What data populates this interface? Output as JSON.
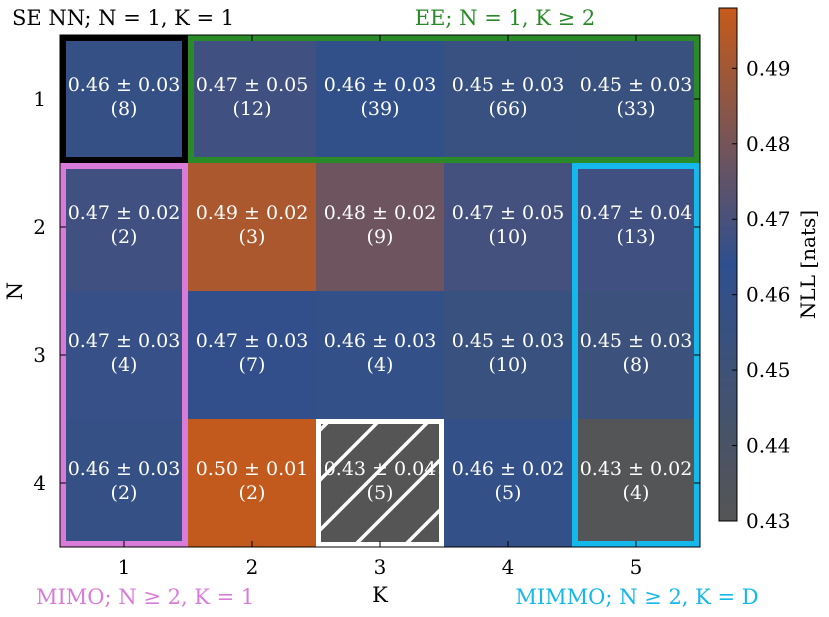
{
  "chart_data": {
    "type": "heatmap",
    "xlabel": "K",
    "ylabel": "N",
    "x_ticks": [
      "1",
      "2",
      "3",
      "4",
      "5"
    ],
    "y_ticks": [
      "1",
      "2",
      "3",
      "4"
    ],
    "cells": [
      [
        {
          "value": 0.458,
          "label": "0.46 ± 0.03",
          "count": "(8)"
        },
        {
          "value": 0.468,
          "label": "0.47 ± 0.05",
          "count": "(12)"
        },
        {
          "value": 0.461,
          "label": "0.46 ± 0.03",
          "count": "(39)"
        },
        {
          "value": 0.455,
          "label": "0.45 ± 0.03",
          "count": "(66)"
        },
        {
          "value": 0.454,
          "label": "0.45 ± 0.03",
          "count": "(33)"
        }
      ],
      [
        {
          "value": 0.468,
          "label": "0.47 ± 0.02",
          "count": "(2)"
        },
        {
          "value": 0.492,
          "label": "0.49 ± 0.02",
          "count": "(3)"
        },
        {
          "value": 0.478,
          "label": "0.48 ± 0.02",
          "count": "(9)"
        },
        {
          "value": 0.469,
          "label": "0.47 ± 0.05",
          "count": "(10)"
        },
        {
          "value": 0.468,
          "label": "0.47 ± 0.04",
          "count": "(13)"
        }
      ],
      [
        {
          "value": 0.466,
          "label": "0.47 ± 0.03",
          "count": "(4)"
        },
        {
          "value": 0.465,
          "label": "0.47 ± 0.03",
          "count": "(7)"
        },
        {
          "value": 0.46,
          "label": "0.46 ± 0.03",
          "count": "(4)"
        },
        {
          "value": 0.454,
          "label": "0.45 ± 0.03",
          "count": "(10)"
        },
        {
          "value": 0.452,
          "label": "0.45 ± 0.03",
          "count": "(8)"
        }
      ],
      [
        {
          "value": 0.458,
          "label": "0.46 ± 0.03",
          "count": "(2)"
        },
        {
          "value": 0.497,
          "label": "0.50 ± 0.01",
          "count": "(2)"
        },
        {
          "value": 0.43,
          "label": "0.43 ± 0.04",
          "count": "(5)"
        },
        {
          "value": 0.46,
          "label": "0.46 ± 0.02",
          "count": "(5)"
        },
        {
          "value": 0.431,
          "label": "0.43 ± 0.02",
          "count": "(4)"
        }
      ]
    ],
    "colorbar": {
      "label": "NLL [nats]",
      "range": [
        0.43,
        0.498
      ],
      "ticks": [
        "0.43",
        "0.44",
        "0.45",
        "0.46",
        "0.47",
        "0.48",
        "0.49"
      ],
      "colors": [
        "#555555",
        "#2e4f8f",
        "#c65a1a"
      ]
    },
    "regions": [
      {
        "name": "SE NN; N = 1, K = 1",
        "color": "#000000",
        "rows": [
          1,
          1
        ],
        "cols": [
          1,
          1
        ],
        "label_pos": "top-left"
      },
      {
        "name": "EE; N = 1, K ≥ 2",
        "color": "#2a8a2a",
        "rows": [
          1,
          1
        ],
        "cols": [
          2,
          5
        ],
        "label_pos": "top-center"
      },
      {
        "name": "MIMO; N ≥ 2, K = 1",
        "color": "#d97bd9",
        "rows": [
          2,
          4
        ],
        "cols": [
          1,
          1
        ],
        "label_pos": "bottom-left"
      },
      {
        "name": "MIMMO; N ≥ 2, K = D",
        "color": "#15b8ea",
        "rows": [
          2,
          4
        ],
        "cols": [
          5,
          5
        ],
        "label_pos": "bottom-right"
      }
    ],
    "hatched_cell": {
      "row": 4,
      "col": 3
    }
  }
}
